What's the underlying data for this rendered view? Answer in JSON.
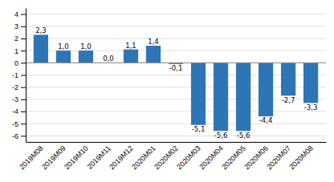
{
  "chart_data": {
    "type": "bar",
    "categories": [
      "2019M08",
      "2019M09",
      "2019M10",
      "2019M11",
      "2019M12",
      "2020M01",
      "2020M02",
      "2020M03",
      "2020M04",
      "2020M05",
      "2020M06",
      "2020M07",
      "2020M08"
    ],
    "values": [
      2.3,
      1.0,
      1.0,
      0.0,
      1.1,
      1.4,
      -0.1,
      -5.1,
      -5.6,
      -5.6,
      -4.4,
      -2.7,
      -3.3
    ],
    "value_labels": [
      "2,3",
      "1,0",
      "1,0",
      "0,0",
      "1,1",
      "1,4",
      "-0,1",
      "-5,1",
      "-5,6",
      "-5,6",
      "-4,4",
      "-2,7",
      "-3,3"
    ],
    "color": "#2E75B6",
    "ylim": [
      -6.5,
      4.5
    ],
    "yticks": [
      -6,
      -5,
      -4,
      -3,
      -2,
      -1,
      0,
      1,
      2,
      3,
      4
    ],
    "grid": true,
    "data_labels": true
  }
}
